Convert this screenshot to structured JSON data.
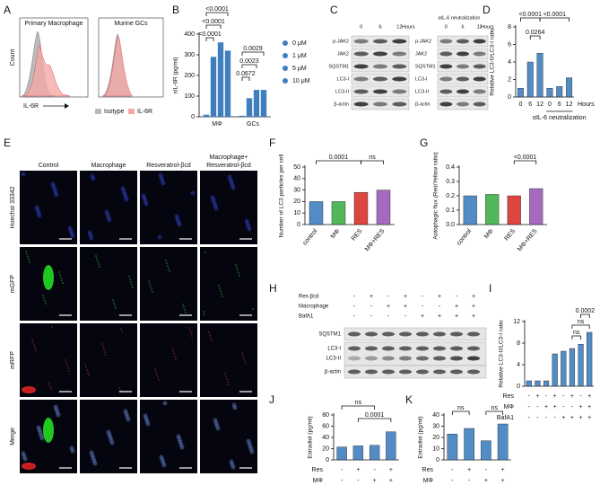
{
  "panel_labels": [
    "A",
    "B",
    "C",
    "D",
    "E",
    "F",
    "G",
    "H",
    "I",
    "J",
    "K"
  ],
  "flow": {
    "titles": [
      "Primary Macrophage",
      "Murine GCs"
    ],
    "ylabel": "Count",
    "xlabel": "IL-6R",
    "legend": [
      "Isotype",
      "IL-6R"
    ]
  },
  "blot_c": {
    "lanes": [
      "0",
      "6",
      "12"
    ],
    "lanes_unit": "Hours",
    "lanes2": [
      "0",
      "6",
      "12"
    ],
    "lanes2_unit": "Hours",
    "treatment": "αIL-6 neutralization",
    "rows": [
      "p-JAK2",
      "JAK2",
      "SQSTM1",
      "LC3-I",
      "LC3-II",
      "β-actin"
    ],
    "rows2": [
      "p-JAK2",
      "JAK2",
      "SQSTM1",
      "LC3-I",
      "LC3-II",
      "β-actin"
    ]
  },
  "micrographs": {
    "columns": [
      [
        "Control"
      ],
      [
        "Macrophage"
      ],
      [
        "Resveratrol-βcd"
      ],
      [
        "Macrophage+",
        "Resveratrol-βcd"
      ]
    ],
    "rows": [
      "Hoechst 33342",
      "mGFP",
      "mRFP",
      "Merge"
    ]
  },
  "blot_h": {
    "conditions": [
      {
        "name": "Res-βcd",
        "signs": [
          "-",
          "+",
          "-",
          "+",
          "-",
          "+",
          "-",
          "+"
        ]
      },
      {
        "name": "Macrophage",
        "signs": [
          "-",
          "-",
          "+",
          "+",
          "-",
          "-",
          "+",
          "+"
        ]
      },
      {
        "name": "BafA1",
        "signs": [
          "-",
          "-",
          "-",
          "-",
          "+",
          "+",
          "+",
          "+"
        ]
      }
    ],
    "rows": [
      "SQSTM1",
      "LC3-I",
      "LC3-II",
      "β-actin"
    ]
  },
  "chart_data": [
    {
      "type": "grouped_bar",
      "ylabel": "sIL-6R (pg/ml)",
      "categories": [
        "MΦ",
        "GCs"
      ],
      "series": [
        {
          "name": "0 μM",
          "color": "#3f7fbf",
          "values": [
            10,
            5
          ]
        },
        {
          "name": "1 μM",
          "color": "#3f7fbf",
          "values": [
            290,
            90
          ]
        },
        {
          "name": "5 μM",
          "color": "#3f7fbf",
          "values": [
            360,
            130
          ]
        },
        {
          "name": "10 μM",
          "color": "#3f7fbf",
          "values": [
            320,
            130
          ]
        }
      ],
      "ylim": [
        0,
        400
      ],
      "yticks": [
        0,
        100,
        200,
        300,
        400
      ],
      "annotations": [
        "<0.0001",
        "<0.0001",
        "<0.0001",
        "0.0029",
        "0.0672",
        "0.0023"
      ]
    },
    {
      "type": "bar",
      "ylabel": "Relative LC3-II/LC3-I ratio",
      "categories": [
        "0",
        "6",
        "12",
        "0",
        "6",
        "12"
      ],
      "xlabel": "Hours",
      "group_label": "αIL-6 neutralization",
      "values": [
        1,
        4,
        5,
        1,
        1.2,
        2.2
      ],
      "color": "#3f7fbf",
      "ylim": [
        0,
        8
      ],
      "yticks": [
        0,
        2,
        4,
        6,
        8
      ],
      "annotations": [
        "<0.0001",
        "<0.0001",
        "0.0264"
      ]
    },
    {
      "type": "bar",
      "ylabel": "Number of LC3 particles per cell",
      "categories": [
        "control",
        "MΦ",
        "RES",
        "MΦ+RES"
      ],
      "values": [
        20,
        20,
        28,
        30
      ],
      "colors": [
        "#3f7fbf",
        "#3fae49",
        "#d9312b",
        "#9b59b6"
      ],
      "ylim": [
        0,
        50
      ],
      "yticks": [
        0,
        10,
        20,
        30,
        40,
        50
      ],
      "annotations": [
        "0.0001",
        "ns"
      ]
    },
    {
      "type": "bar",
      "ylabel": "Autophagic flux (Red/Yellow ratio)",
      "categories": [
        "control",
        "MΦ",
        "RES",
        "MΦ+RES"
      ],
      "values": [
        0.2,
        0.21,
        0.2,
        0.25
      ],
      "colors": [
        "#3f7fbf",
        "#3fae49",
        "#d9312b",
        "#9b59b6"
      ],
      "ylim": [
        0,
        0.4
      ],
      "yticks": [
        {
          "value": 0,
          "label": "0.0"
        },
        0.1,
        0.2,
        0.3,
        0.4
      ],
      "annotations": [
        "<0.0001"
      ]
    },
    {
      "type": "bar",
      "ylabel": "Relative LC3-II/LC3-I ratio",
      "values": [
        1,
        1,
        1,
        6,
        6.5,
        7,
        7.8,
        10
      ],
      "color": "#3f7fbf",
      "ylim": [
        0,
        12
      ],
      "yticks": [
        0,
        4,
        8,
        12
      ],
      "conditions": [
        {
          "name": "Res",
          "signs": [
            "-",
            "+",
            "-",
            "+",
            "-",
            "+",
            "-",
            "+"
          ]
        },
        {
          "name": "MΦ",
          "signs": [
            "-",
            "-",
            "+",
            "+",
            "-",
            "-",
            "+",
            "+"
          ]
        },
        {
          "name": "BafA1",
          "signs": [
            "-",
            "-",
            "-",
            "-",
            "+",
            "+",
            "+",
            "+"
          ]
        }
      ],
      "annotations": [
        "ns",
        "ns",
        "0.0002"
      ]
    },
    {
      "type": "bar",
      "ylabel": "Estradiol (pg/ml)",
      "values": [
        23,
        25,
        26,
        50
      ],
      "color": "#3f7fbf",
      "ylim": [
        0,
        80
      ],
      "yticks": [
        0,
        20,
        40,
        60,
        80
      ],
      "conditions": [
        {
          "name": "Res",
          "signs": [
            "-",
            "+",
            "-",
            "+"
          ]
        },
        {
          "name": "MΦ",
          "signs": [
            "-",
            "-",
            "+",
            "+"
          ]
        }
      ],
      "annotations": [
        "ns",
        "0.0001"
      ]
    },
    {
      "type": "bar",
      "ylabel": "Estradiol (pg/ml)",
      "values": [
        23,
        28,
        17,
        32
      ],
      "color": "#3f7fbf",
      "ylim": [
        0,
        40
      ],
      "yticks": [
        0,
        10,
        20,
        30,
        40
      ],
      "conditions": [
        {
          "name": "Res",
          "signs": [
            "-",
            "+",
            "-",
            "+"
          ]
        },
        {
          "name": "MΦ",
          "signs": [
            "-",
            "-",
            "+",
            "+"
          ]
        }
      ],
      "annotations": [
        "ns",
        "ns"
      ]
    }
  ]
}
